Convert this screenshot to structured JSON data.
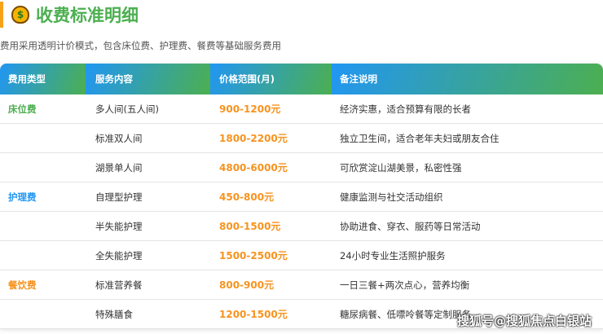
{
  "title": "收费标准明细",
  "title_icon": "money-bag-icon",
  "subtitle": "费用采用透明计价模式，包含床位费、护理费、餐费等基础服务费用",
  "headers": [
    "费用类型",
    "服务内容",
    "价格范围(月)",
    "备注说明"
  ],
  "rows": [
    {
      "category": "床位费",
      "category_color": "#4caf50",
      "service": "多人间(五人间)",
      "price": "900-1200元",
      "note": "经济实惠，适合预算有限的长者"
    },
    {
      "category": "",
      "service": "标准双人间",
      "price": "1800-2200元",
      "note": "独立卫生间，适合老年夫妇或朋友合住"
    },
    {
      "category": "",
      "service": "湖景单人间",
      "price": "4800-6000元",
      "note": "可欣赏淀山湖美景，私密性强"
    },
    {
      "category": "护理费",
      "category_color": "#2196f3",
      "service": "自理型护理",
      "price": "450-800元",
      "note": "健康监测与社交活动组织"
    },
    {
      "category": "",
      "service": "半失能护理",
      "price": "800-1500元",
      "note": "协助进食、穿衣、服药等日常活动"
    },
    {
      "category": "",
      "service": "全失能护理",
      "price": "1500-2500元",
      "note": "24小时专业生活照护服务"
    },
    {
      "category": "餐饮费",
      "category_color": "#f7931e",
      "service": "标准营养餐",
      "price": "800-900元",
      "note": "一日三餐+两次点心，营养均衡"
    },
    {
      "category": "",
      "service": "特殊膳食",
      "price": "1200-1500元",
      "note": "糖尿病餐、低嘌呤餐等定制服务"
    }
  ],
  "watermark": "搜狐号@搜狐焦点白银站"
}
